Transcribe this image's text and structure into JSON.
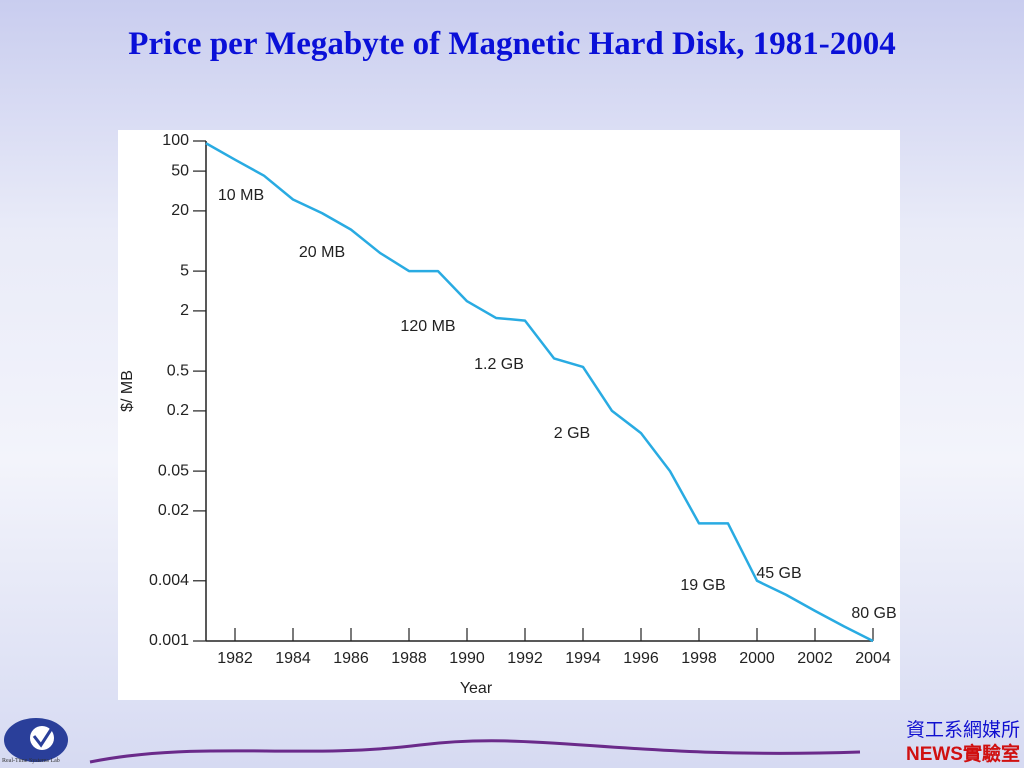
{
  "chart_data": {
    "type": "line",
    "title": "Price per Megabyte of Magnetic Hard Disk, 1981-2004",
    "x_label": "Year",
    "y_label": "$/ MB",
    "x": [
      1981,
      1982,
      1983,
      1984,
      1985,
      1986,
      1987,
      1988,
      1989,
      1990,
      1991,
      1992,
      1993,
      1994,
      1995,
      1996,
      1997,
      1998,
      1999,
      2000,
      2001,
      2002,
      2003,
      2004
    ],
    "series": [
      {
        "name": "Price per MB",
        "color": "#29abe2",
        "values": [
          95,
          65,
          45,
          26,
          19,
          13,
          7.6,
          5,
          5,
          2.5,
          1.7,
          1.6,
          0.67,
          0.55,
          0.2,
          0.12,
          0.05,
          0.015,
          0.015,
          0.004,
          0.0029,
          0.002,
          0.0014,
          0.001
        ]
      }
    ],
    "xlim": [
      1981,
      2004
    ],
    "xticks": [
      1982,
      1984,
      1986,
      1988,
      1990,
      1992,
      1994,
      1996,
      1998,
      2000,
      2002,
      2004
    ],
    "ylim": [
      0.001,
      100
    ],
    "yticks": [
      100,
      50,
      20,
      5,
      2,
      0.5,
      0.2,
      0.05,
      0.02,
      0.004,
      0.001
    ],
    "y_log": true,
    "grid": false,
    "annotations": [
      "10 MB",
      "20 MB",
      "120 MB",
      "1.2 GB",
      "2 GB",
      "19 GB",
      "45 GB",
      "80 GB"
    ]
  },
  "footer": {
    "lab": "Real-Time Systems Lab",
    "dept": "資工系網媒所",
    "news": "NEWS實驗室"
  }
}
